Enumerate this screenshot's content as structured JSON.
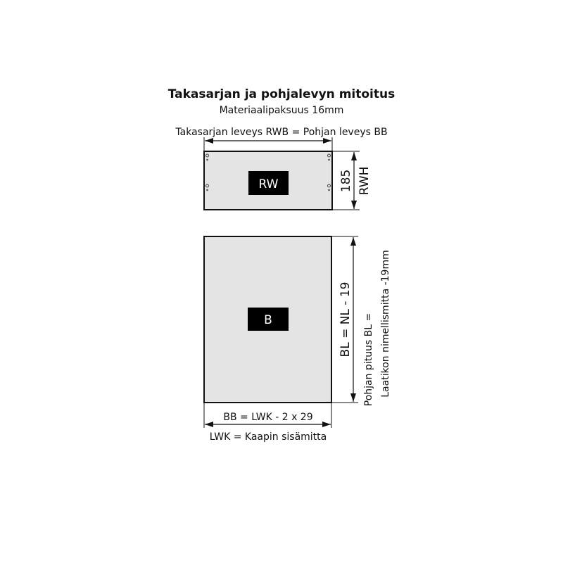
{
  "title": "Takasarjan ja pohjalevyn mitoitus",
  "subtitle": "Materiaalipaksuus 16mm",
  "top_dimension_label": "Takasarjan leveys RWB = Pohjan leveys BB",
  "back_panel": {
    "label": "RW",
    "height_value": "185",
    "height_label": "RWH"
  },
  "bottom_panel": {
    "label": "B",
    "length_formula": "BL = NL - 19",
    "length_note_line1": "Pohjan pituus BL =",
    "length_note_line2": "Laatikon nimellismitta -19mm",
    "width_formula": "BB = LWK - 2 x 29",
    "width_note": "LWK = Kaapin sisämitta"
  },
  "colors": {
    "panel_fill": "#e4e4e4",
    "label_box": "#000000",
    "line": "#111111"
  }
}
